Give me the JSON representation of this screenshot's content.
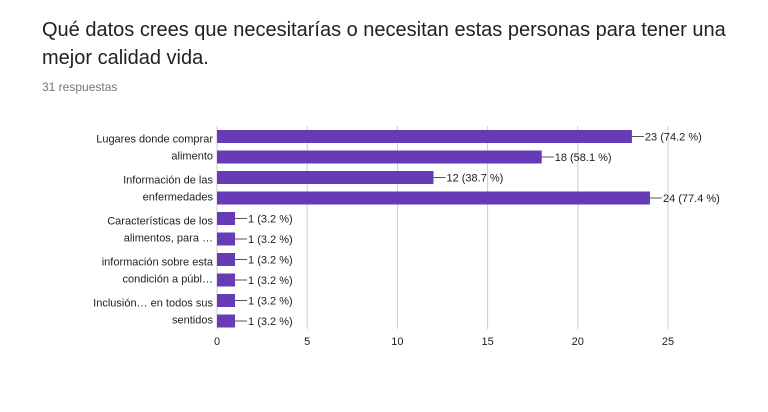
{
  "question": {
    "title": "Qué datos crees que necesitarías o necesitan estas personas para tener una mejor calidad vida.",
    "responses": "31 respuestas"
  },
  "colors": {
    "bar": "#673ab7",
    "grid": "#cccccc",
    "axis_text": "#212121",
    "label_text": "#212121"
  },
  "chart_data": {
    "type": "bar",
    "orientation": "horizontal",
    "categories": [
      [
        "Lugares donde comprar",
        "alimento"
      ],
      [],
      [
        "Información de las",
        "enfermedades"
      ],
      [],
      [
        "Características de los",
        "alimentos, para …"
      ],
      [],
      [
        "información sobre esta",
        "condición a públ…"
      ],
      [],
      [
        "Inclusión… en todos sus",
        "sentidos"
      ],
      []
    ],
    "values": [
      23,
      18,
      12,
      24,
      1,
      1,
      1,
      1,
      1,
      1
    ],
    "value_labels": [
      "23 (74.2 %)",
      "18 (58.1 %)",
      "12 (38.7 %)",
      "24 (77.4 %)",
      "1 (3.2 %)",
      "1 (3.2 %)",
      "1 (3.2 %)",
      "1 (3.2 %)",
      "1 (3.2 %)",
      "1 (3.2 %)"
    ],
    "xlim": [
      0,
      25
    ],
    "xticks": [
      0,
      5,
      10,
      15,
      20,
      25
    ],
    "grid": true
  }
}
